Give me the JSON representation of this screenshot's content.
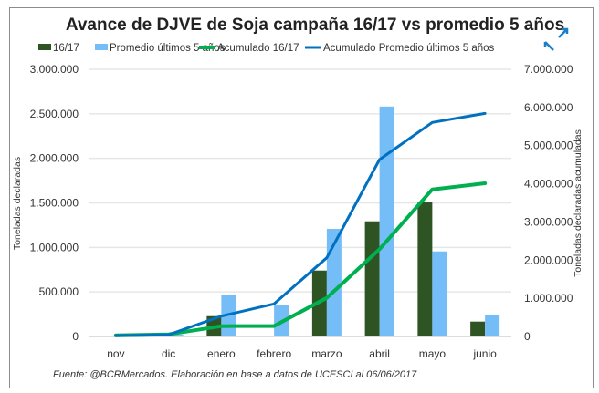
{
  "chart_data": {
    "type": "bar",
    "title": "Avance de DJVE de Soja campaña 16/17 vs promedio 5 años",
    "categories": [
      "nov",
      "dic",
      "enero",
      "febrero",
      "marzo",
      "abril",
      "mayo",
      "junio"
    ],
    "ylabel": "Toneladas declaradas",
    "y2label": "Toneladas declaradas acumuladas",
    "ylim": [
      0,
      3000000
    ],
    "y2lim": [
      0,
      7000000
    ],
    "yticks": [
      "0",
      "500.000",
      "1.000.000",
      "1.500.000",
      "2.000.000",
      "2.500.000",
      "3.000.000"
    ],
    "y2ticks": [
      "0",
      "1.000.000",
      "2.000.000",
      "3.000.000",
      "4.000.000",
      "5.000.000",
      "6.000.000",
      "7.000.000"
    ],
    "grid": true,
    "legend": "top",
    "series": [
      {
        "name": "16/17",
        "kind": "bar",
        "axis": "left",
        "color": "#2f5423",
        "values": [
          10000,
          20000,
          228000,
          10000,
          740000,
          1293000,
          1508000,
          167000
        ]
      },
      {
        "name": "Promedio últimos 5 años",
        "kind": "bar",
        "axis": "left",
        "color": "#74bdf7",
        "values": [
          10000,
          20000,
          470000,
          348000,
          1208000,
          2582000,
          955000,
          246000
        ]
      },
      {
        "name": "Acumulado 16/17",
        "kind": "line",
        "axis": "right",
        "color": "#00b050",
        "values": [
          30000,
          55000,
          270000,
          273000,
          1011000,
          2286000,
          3853000,
          4013000
        ]
      },
      {
        "name": "Acumulado Promedio últimos 5 años",
        "kind": "line",
        "axis": "right",
        "color": "#0070c0",
        "values": [
          20000,
          45000,
          533000,
          853000,
          2062000,
          4635000,
          5607000,
          5845000
        ]
      }
    ],
    "source": "Fuente: @BCRMercados. Elaboración en base a datos de UCESCI al 06/06/2017"
  }
}
